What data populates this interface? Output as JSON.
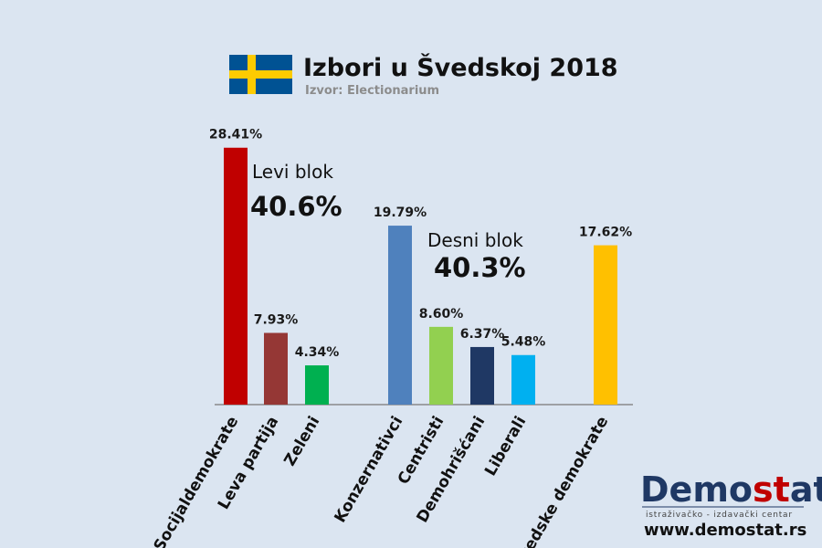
{
  "chart_data": {
    "type": "bar",
    "title": "Izbori u Švedskoj 2018",
    "subtitle": "Izvor: Electionarium",
    "ylim": [
      0,
      30
    ],
    "grid": false,
    "categories": [
      "Socijaldemokrate",
      "Leva partija",
      "Zeleni",
      "Konzernativci",
      "Centristi",
      "Demohrišćani",
      "Liberali",
      "Švedske demokrate"
    ],
    "values": [
      28.41,
      7.93,
      4.34,
      19.79,
      8.6,
      6.37,
      5.48,
      17.62
    ],
    "value_labels": [
      "28.41%",
      "7.93%",
      "4.34%",
      "19.79%",
      "8.60%",
      "6.37%",
      "5.48%",
      "17.62%"
    ],
    "colors": [
      "#c00000",
      "#953735",
      "#00b050",
      "#4f81bd",
      "#92d050",
      "#1f3864",
      "#00b0f0",
      "#ffc000"
    ],
    "blocs": [
      {
        "name": "Levi blok",
        "value": "40.6%"
      },
      {
        "name": "Desni blok",
        "value": "40.3%"
      }
    ]
  },
  "flag": {
    "name": "sweden-flag-icon",
    "blue": "#005293",
    "yellow": "#fecb00"
  },
  "brand": {
    "name_part1": "Demo",
    "name_part2": "st",
    "name_part3": "at",
    "tagline": "istraživačko - izdavački  centar",
    "url": "www.demostat.rs",
    "color_dark": "#1f3864",
    "color_accent": "#c00000"
  }
}
